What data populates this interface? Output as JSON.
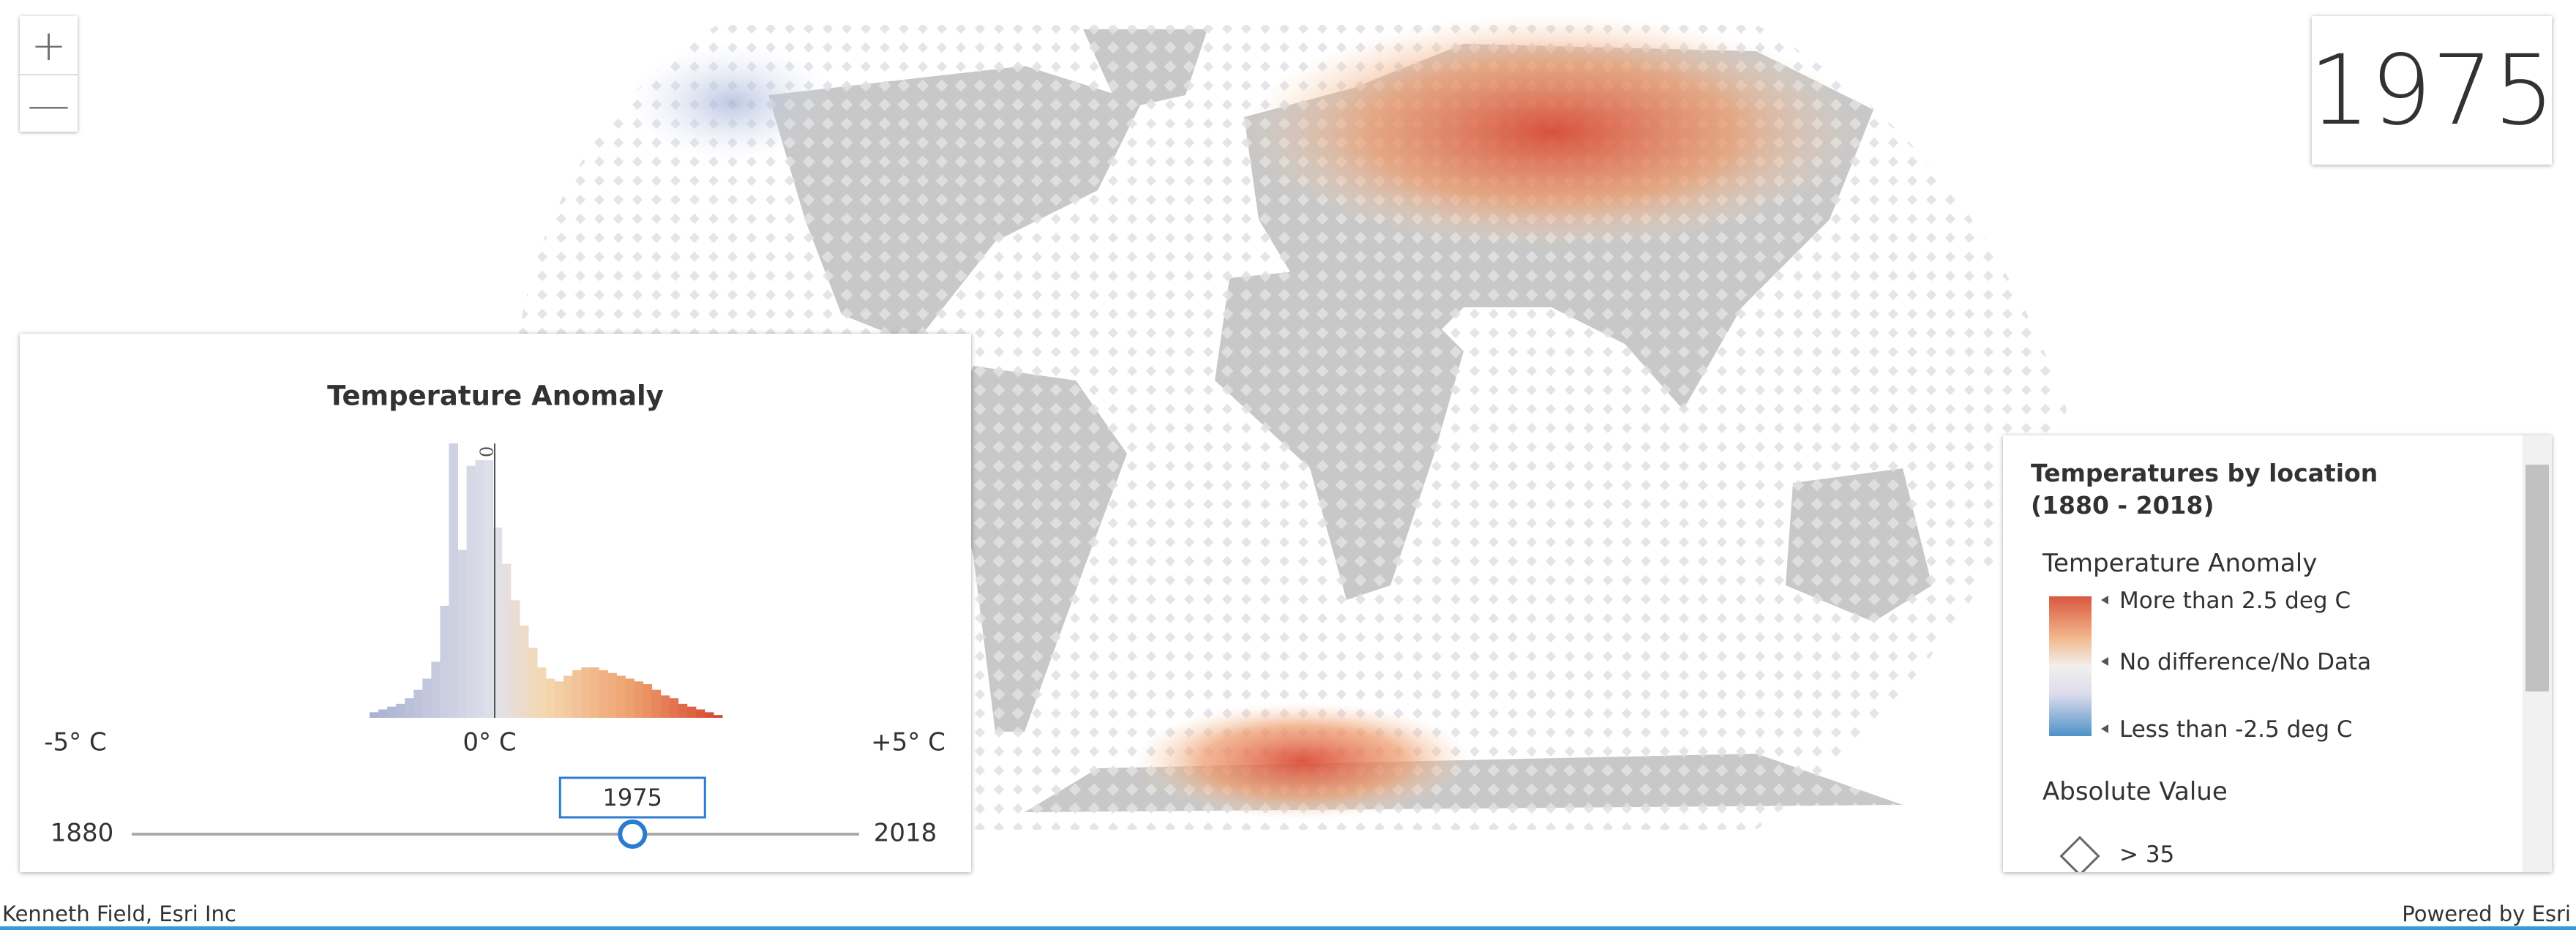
{
  "zoom_controls": {
    "zoom_in": "+",
    "zoom_out": "—"
  },
  "time_panel": {
    "title": "Temperature Anomaly",
    "mean_label": "x̄ 0",
    "histogram": {
      "counts": [
        2,
        3,
        4,
        5,
        7,
        10,
        14,
        20,
        40,
        98,
        60,
        90,
        92,
        92,
        68,
        55,
        42,
        33,
        25,
        18,
        14,
        13,
        15,
        17,
        18,
        18,
        17,
        16,
        15,
        14,
        13,
        12,
        10,
        8,
        7,
        5,
        4,
        3,
        2,
        1
      ]
    },
    "axis_labels": [
      "-5° C",
      "0° C",
      "+5° C"
    ],
    "slider": {
      "min": 1880,
      "max": 2018,
      "value": 1975
    }
  },
  "legend": {
    "title": "Temperatures by location (1880 - 2018)",
    "section_1": "Temperature Anomaly",
    "ramp_labels": [
      "More than 2.5 deg C",
      "No difference/No Data",
      "Less than -2.5 deg C"
    ],
    "section_2": "Absolute Value",
    "size_label": "> 35"
  },
  "footer": {
    "attribution": "Kenneth Field, Esri Inc",
    "powered_by": "Powered by Esri"
  }
}
